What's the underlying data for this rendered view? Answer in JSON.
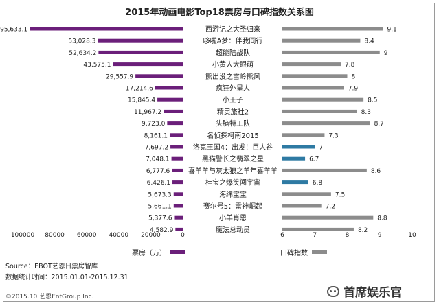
{
  "header": {
    "title": "2015年动画电影Top18票房与口碑指数关系图"
  },
  "colors": {
    "box_office_bar": "#6b1f7a",
    "score_bar_default": "#8c8c8c",
    "score_bar_highlight": "#2e7aa3",
    "border": "#9a9a9a"
  },
  "legend": {
    "box_office_label": "票房（万）",
    "score_label": "口碑指数"
  },
  "footer": {
    "source": "Source：EBOT艺恩日票房智库",
    "period": "数据统计时间：2015.01.01-2015.12.31",
    "copyright": "©2015.10 艺恩EntGroup Inc.",
    "watermark": "首席娱乐官"
  },
  "chart_data": {
    "type": "bar",
    "title": "2015年动画电影Top18票房与口碑指数关系图",
    "categories": [
      "西游记之大圣归来",
      "哆啦A梦：伴我同行",
      "超能陆战队",
      "小黄人大眼萌",
      "熊出没之雪岭熊风",
      "疯狂外星人",
      "小王子",
      "精灵旅社2",
      "头脑特工队",
      "名侦探柯南2015",
      "洛克王国4：出发！巨人谷",
      "黑猫警长之翡翠之星",
      "喜羊羊与灰太狼之羊年喜羊羊",
      "桂宝之爆笑闯宇宙",
      "海绵宝宝",
      "赛尔号5：雷神崛起",
      "小羊肖恩",
      "魔法总动员"
    ],
    "series": [
      {
        "name": "票房（万）",
        "values": [
          95633.1,
          53028.3,
          52634.2,
          43575.1,
          29557.9,
          17214.6,
          15845.4,
          11967.2,
          9723.0,
          8161.1,
          7697.2,
          7048.1,
          6777.6,
          6426.1,
          5673.3,
          5661.1,
          5377.6,
          4582.9
        ],
        "labels": [
          "95,633.1",
          "53,028.3",
          "52,634.2",
          "43,575.1",
          "29,557.9",
          "17,214.6",
          "15,845.4",
          "11,967.2",
          "9,723.0",
          "8,161.1",
          "7,697.2",
          "7,048.1",
          "6,777.6",
          "6,426.1",
          "5,673.3",
          "5,661.1",
          "5,377.6",
          "4,582.9"
        ],
        "axis_ticks": [
          "100000",
          "80000",
          "60000",
          "40000",
          "20000",
          "0"
        ],
        "xlim": [
          0,
          100000
        ],
        "direction": "leftward"
      },
      {
        "name": "口碑指数",
        "values": [
          9.1,
          8.4,
          9,
          7.8,
          8,
          7.9,
          8.5,
          8.3,
          8.7,
          7.3,
          7,
          6.7,
          8.6,
          6.8,
          7.5,
          7.2,
          8.8,
          8.2
        ],
        "labels": [
          "9.1",
          "8.4",
          "9",
          "7.8",
          "8",
          "7.9",
          "8.5",
          "8.3",
          "8.7",
          "7.3",
          "7",
          "6.7",
          "8.6",
          "6.8",
          "7.5",
          "7.2",
          "8.8",
          "8.2"
        ],
        "highlight": [
          false,
          false,
          false,
          false,
          false,
          false,
          false,
          false,
          false,
          false,
          true,
          true,
          false,
          true,
          false,
          false,
          false,
          false
        ],
        "axis_ticks": [
          "6",
          "7",
          "8",
          "9",
          "10"
        ],
        "xlim": [
          6,
          10
        ],
        "direction": "rightward"
      }
    ]
  }
}
